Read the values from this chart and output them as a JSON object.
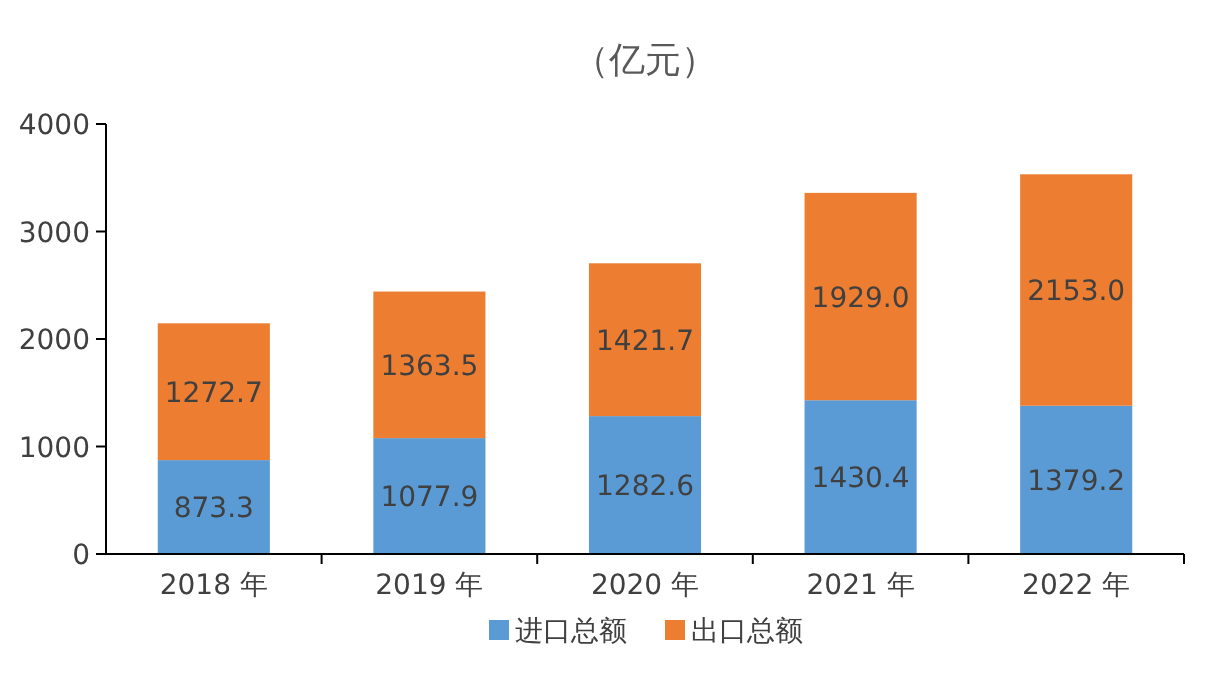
{
  "chart_data": {
    "type": "bar",
    "title": "（亿元）",
    "stacked": true,
    "categories": [
      "2018 年",
      "2019 年",
      "2020 年",
      "2021 年",
      "2022 年"
    ],
    "series": [
      {
        "name": "进口总额",
        "color": "#5b9bd5",
        "values": [
          873.3,
          1077.9,
          1282.6,
          1430.4,
          1379.2
        ],
        "value_labels": [
          "873.3",
          "1077.9",
          "1282.6",
          "1430.4",
          "1379.2"
        ]
      },
      {
        "name": "出口总额",
        "color": "#ed7d31",
        "values": [
          1272.7,
          1363.5,
          1421.7,
          1929,
          2153
        ],
        "value_labels": [
          "1272.7",
          "1363.5",
          "1421.7",
          "1929.0",
          "2153.0"
        ]
      }
    ],
    "ylim": [
      0,
      4000
    ],
    "yticks": [
      0,
      1000,
      2000,
      3000,
      4000
    ],
    "legend": "bottom"
  }
}
